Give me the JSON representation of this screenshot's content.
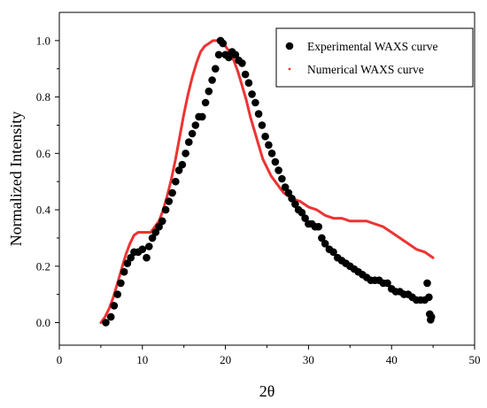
{
  "chart_data": {
    "type": "scatter",
    "xlabel": "2θ",
    "ylabel": "Normalized Intensity",
    "xlim": [
      0,
      50
    ],
    "ylim": [
      -0.08,
      1.1
    ],
    "x_ticks": [
      0,
      10,
      20,
      30,
      40,
      50
    ],
    "y_ticks": [
      0.0,
      0.2,
      0.4,
      0.6,
      0.8,
      1.0
    ],
    "grid": false,
    "legend_position": "top-right",
    "series": [
      {
        "name": "Experimental WAXS curve",
        "kind": "scatter",
        "color": "#000000",
        "x": [
          5.6,
          6.2,
          6.6,
          7.0,
          7.4,
          7.8,
          8.2,
          8.6,
          9.0,
          9.5,
          10.0,
          10.5,
          10.8,
          11.2,
          11.6,
          12.0,
          12.4,
          12.8,
          13.2,
          13.6,
          14.0,
          14.4,
          14.8,
          15.2,
          15.6,
          16.0,
          16.4,
          16.8,
          17.2,
          17.6,
          18.0,
          18.4,
          18.8,
          19.2,
          19.4,
          19.7,
          20.0,
          20.4,
          20.8,
          21.2,
          21.6,
          22.0,
          22.4,
          22.8,
          23.2,
          23.6,
          24.0,
          24.4,
          24.8,
          25.2,
          25.6,
          26.0,
          26.4,
          26.8,
          27.2,
          27.6,
          28.0,
          28.4,
          28.8,
          29.2,
          29.6,
          30.0,
          30.4,
          30.8,
          31.2,
          31.6,
          32.0,
          32.5,
          33.0,
          33.5,
          34.0,
          34.5,
          35.0,
          35.5,
          36.0,
          36.5,
          37.0,
          37.5,
          38.0,
          38.5,
          39.0,
          39.5,
          40.0,
          40.5,
          41.0,
          41.5,
          42.0,
          42.5,
          43.0,
          43.5,
          44.0,
          44.3,
          44.5,
          44.6,
          44.7,
          44.8
        ],
        "y": [
          0.0,
          0.02,
          0.06,
          0.1,
          0.14,
          0.18,
          0.21,
          0.23,
          0.25,
          0.25,
          0.26,
          0.23,
          0.27,
          0.3,
          0.32,
          0.34,
          0.36,
          0.4,
          0.43,
          0.46,
          0.5,
          0.54,
          0.56,
          0.6,
          0.64,
          0.67,
          0.7,
          0.73,
          0.73,
          0.78,
          0.82,
          0.86,
          0.9,
          0.95,
          1.0,
          0.99,
          0.95,
          0.94,
          0.96,
          0.95,
          0.93,
          0.92,
          0.88,
          0.85,
          0.81,
          0.78,
          0.74,
          0.7,
          0.66,
          0.63,
          0.6,
          0.57,
          0.54,
          0.51,
          0.48,
          0.46,
          0.44,
          0.42,
          0.4,
          0.39,
          0.37,
          0.35,
          0.35,
          0.34,
          0.34,
          0.3,
          0.28,
          0.26,
          0.25,
          0.23,
          0.22,
          0.21,
          0.2,
          0.19,
          0.18,
          0.17,
          0.16,
          0.15,
          0.15,
          0.15,
          0.14,
          0.14,
          0.12,
          0.11,
          0.11,
          0.1,
          0.1,
          0.09,
          0.08,
          0.08,
          0.08,
          0.14,
          0.09,
          0.03,
          0.01,
          0.02
        ]
      },
      {
        "name": "Numerical WAXS curve",
        "kind": "line",
        "color": "#ee3333",
        "x": [
          5.0,
          5.5,
          6.0,
          6.5,
          7.0,
          7.5,
          8.0,
          8.5,
          9.0,
          9.5,
          10.0,
          10.5,
          11.0,
          11.5,
          12.0,
          12.5,
          13.0,
          13.5,
          14.0,
          14.5,
          15.0,
          15.5,
          16.0,
          16.5,
          17.0,
          17.5,
          18.0,
          18.5,
          19.0,
          19.5,
          20.0,
          20.5,
          21.0,
          21.5,
          22.0,
          22.5,
          23.0,
          23.5,
          24.0,
          24.5,
          25.0,
          25.5,
          26.0,
          26.5,
          27.0,
          27.5,
          28.0,
          29.0,
          30.0,
          31.0,
          32.0,
          33.0,
          34.0,
          35.0,
          36.0,
          37.0,
          38.0,
          39.0,
          40.0,
          41.0,
          42.0,
          43.0,
          44.0,
          45.0
        ],
        "y": [
          0.0,
          0.02,
          0.05,
          0.09,
          0.14,
          0.19,
          0.24,
          0.28,
          0.31,
          0.32,
          0.32,
          0.32,
          0.32,
          0.34,
          0.36,
          0.4,
          0.45,
          0.51,
          0.58,
          0.66,
          0.74,
          0.81,
          0.87,
          0.92,
          0.96,
          0.98,
          0.99,
          1.0,
          1.0,
          0.99,
          0.98,
          0.96,
          0.93,
          0.89,
          0.84,
          0.79,
          0.73,
          0.68,
          0.63,
          0.58,
          0.55,
          0.52,
          0.5,
          0.48,
          0.46,
          0.45,
          0.44,
          0.43,
          0.41,
          0.4,
          0.38,
          0.37,
          0.37,
          0.36,
          0.36,
          0.36,
          0.35,
          0.34,
          0.32,
          0.3,
          0.28,
          0.26,
          0.25,
          0.23
        ]
      }
    ]
  }
}
